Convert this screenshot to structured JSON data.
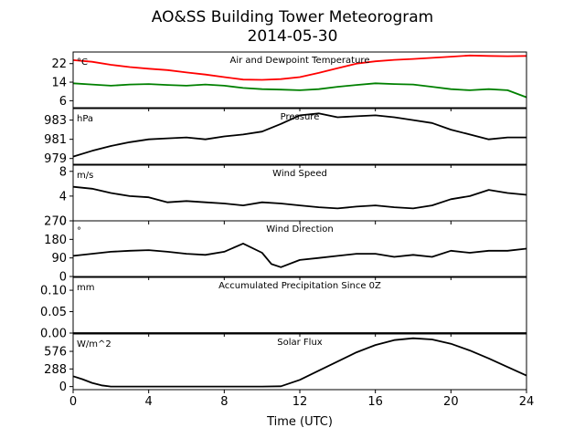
{
  "chart_data": {
    "type": "line",
    "title": "AO&SS Building Tower Meteorogram",
    "subtitle": "2014-05-30",
    "xlabel": "Time (UTC)",
    "xlim": [
      0,
      24
    ],
    "x_ticks": [
      "0",
      "4",
      "8",
      "12",
      "16",
      "20",
      "24"
    ],
    "panels": [
      {
        "title": "Air and Dewpoint Temperature",
        "unit": "°C",
        "ylim": [
          3,
          27
        ],
        "y_ticks": [
          6,
          14,
          22
        ],
        "series": [
          {
            "color": "#ff0000",
            "x": [
              0,
              1,
              2,
              3,
              4,
              5,
              6,
              7,
              8,
              9,
              10,
              11,
              12,
              13,
              14,
              15,
              16,
              17,
              18,
              19,
              20,
              21,
              22,
              23,
              24
            ],
            "y": [
              23.5,
              22.8,
              21.5,
              20.5,
              19.8,
              19.2,
              18.2,
              17.3,
              16.2,
              15.1,
              15.0,
              15.3,
              16.2,
              18.0,
              20.0,
              22.0,
              23.0,
              23.6,
              24.0,
              24.5,
              25.0,
              25.5,
              25.3,
              25.2,
              25.3
            ]
          },
          {
            "color": "#008000",
            "x": [
              0,
              1,
              2,
              3,
              4,
              5,
              6,
              7,
              8,
              9,
              10,
              11,
              12,
              13,
              14,
              15,
              16,
              17,
              18,
              19,
              20,
              21,
              22,
              23,
              24
            ],
            "y": [
              13.5,
              13.0,
              12.5,
              13.0,
              13.2,
              12.8,
              12.5,
              13.0,
              12.5,
              11.5,
              11.0,
              10.8,
              10.5,
              11.0,
              12.0,
              12.8,
              13.5,
              13.2,
              13.0,
              12.0,
              11.0,
              10.5,
              11.0,
              10.5,
              7.5
            ]
          }
        ]
      },
      {
        "title": "Pressure",
        "unit": "hPa",
        "ylim": [
          978.4,
          984.2
        ],
        "y_ticks": [
          979,
          981,
          983
        ],
        "series": [
          {
            "color": "#000000",
            "x": [
              0,
              1,
              2,
              3,
              4,
              5,
              6,
              7,
              8,
              9,
              10,
              11,
              12,
              13,
              14,
              15,
              16,
              17,
              18,
              19,
              20,
              21,
              22,
              23,
              24
            ],
            "y": [
              979.2,
              979.8,
              980.3,
              980.7,
              981.0,
              981.1,
              981.2,
              981.0,
              981.3,
              981.5,
              981.8,
              982.6,
              983.5,
              983.7,
              983.3,
              983.4,
              983.5,
              983.3,
              983.0,
              982.7,
              982.0,
              981.5,
              981.0,
              981.2,
              981.2
            ]
          }
        ]
      },
      {
        "title": "Wind Speed",
        "unit": "m/s",
        "ylim": [
          0,
          9
        ],
        "y_ticks": [
          0,
          4,
          8
        ],
        "series": [
          {
            "color": "#000000",
            "x": [
              0,
              1,
              2,
              3,
              4,
              5,
              6,
              7,
              8,
              9,
              10,
              11,
              12,
              13,
              14,
              15,
              16,
              17,
              18,
              19,
              20,
              21,
              22,
              23,
              24
            ],
            "y": [
              5.5,
              5.2,
              4.5,
              4.0,
              3.8,
              3.0,
              3.2,
              3.0,
              2.8,
              2.5,
              3.0,
              2.8,
              2.5,
              2.2,
              2.0,
              2.3,
              2.5,
              2.2,
              2.0,
              2.5,
              3.5,
              4.0,
              5.0,
              4.5,
              4.2
            ]
          }
        ]
      },
      {
        "title": "Wind Direction",
        "unit": "°",
        "ylim": [
          0,
          270
        ],
        "y_ticks": [
          0,
          90,
          180,
          270
        ],
        "series": [
          {
            "color": "#000000",
            "x": [
              0,
              1,
              2,
              3,
              4,
              5,
              6,
              7,
              8,
              9,
              10,
              10.5,
              11,
              12,
              13,
              14,
              15,
              16,
              17,
              18,
              19,
              20,
              21,
              22,
              23,
              24
            ],
            "y": [
              100,
              110,
              120,
              125,
              128,
              120,
              110,
              105,
              120,
              160,
              115,
              60,
              45,
              80,
              90,
              100,
              110,
              110,
              95,
              105,
              95,
              125,
              115,
              125,
              125,
              135
            ]
          }
        ]
      },
      {
        "title": "Accumulated Precipitation Since 0Z",
        "unit": "mm",
        "ylim": [
          0,
          0.13
        ],
        "y_ticks": [
          "0.00",
          "0.05",
          "0.10"
        ],
        "series": [
          {
            "color": "#000000",
            "x": [
              0,
              24
            ],
            "y": [
              0,
              0
            ]
          }
        ]
      },
      {
        "title": "Solar Flux",
        "unit": "W/m^2",
        "ylim": [
          -50,
          860
        ],
        "y_ticks": [
          0,
          288,
          576
        ],
        "series": [
          {
            "color": "#000000",
            "x": [
              0,
              0.5,
              1,
              1.5,
              2,
              3,
              4,
              6,
              8,
              10,
              11,
              12,
              13,
              14,
              15,
              16,
              17,
              18,
              19,
              20,
              21,
              22,
              23,
              24
            ],
            "y": [
              170,
              120,
              60,
              20,
              0,
              0,
              0,
              0,
              0,
              0,
              5,
              110,
              260,
              410,
              560,
              680,
              760,
              790,
              770,
              700,
              590,
              460,
              320,
              180
            ]
          }
        ]
      }
    ]
  }
}
